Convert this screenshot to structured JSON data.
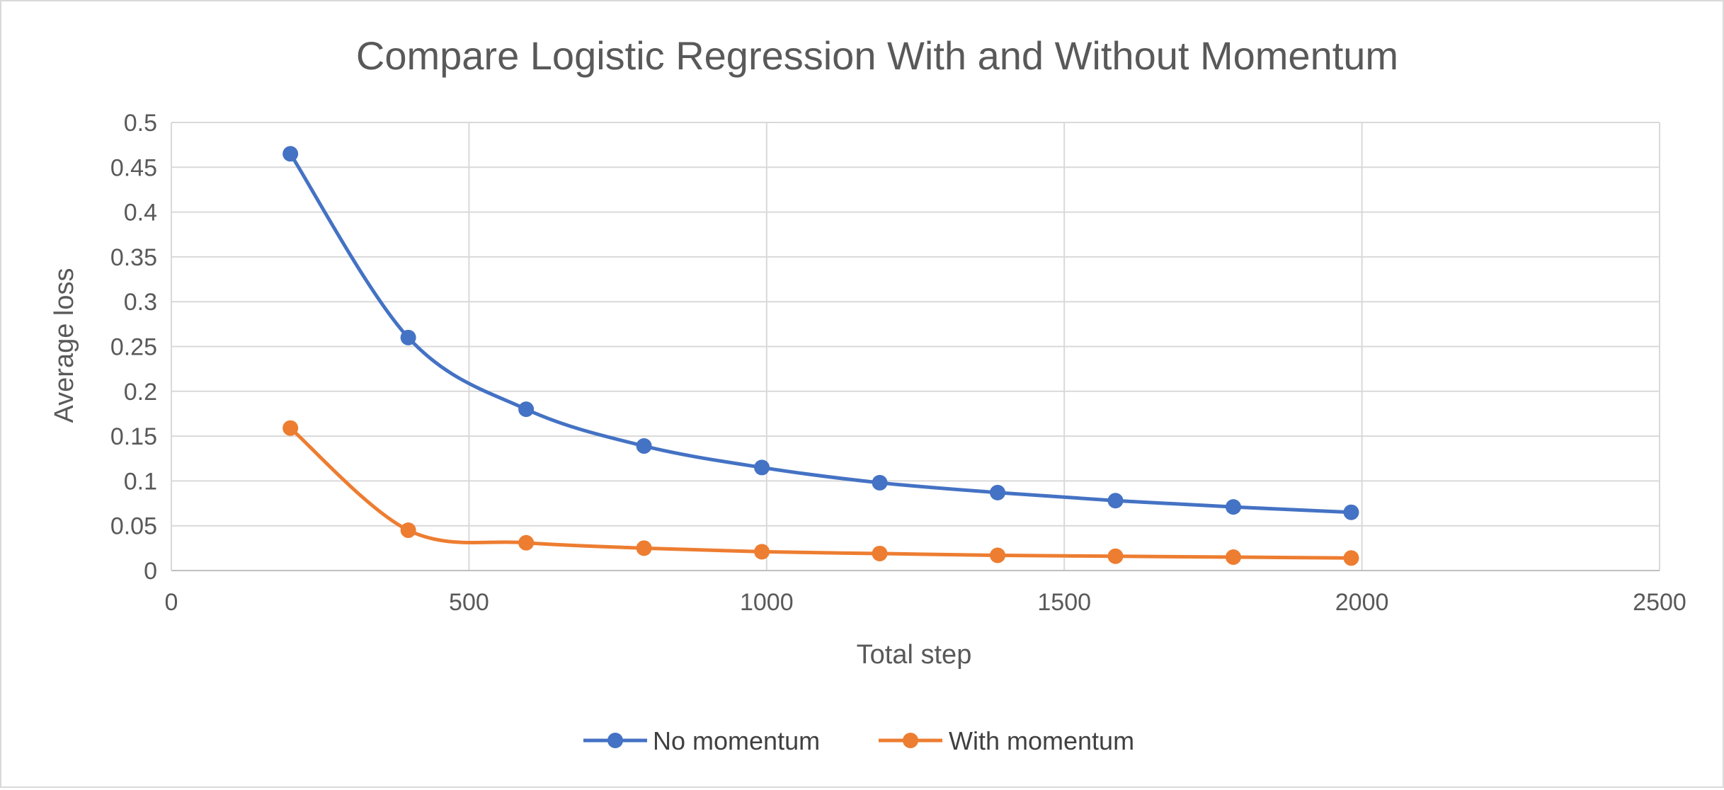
{
  "chart_data": {
    "type": "line",
    "title": "Compare Logistic Regression With and Without Momentum",
    "xlabel": "Total step",
    "ylabel": "Average loss",
    "xlim": [
      0,
      2500
    ],
    "ylim": [
      0,
      0.5
    ],
    "x_ticks": [
      0,
      500,
      1000,
      1500,
      2000,
      2500
    ],
    "y_ticks": [
      0,
      0.05,
      0.1,
      0.15,
      0.2,
      0.25,
      0.3,
      0.35,
      0.4,
      0.45,
      0.5
    ],
    "x_tick_labels": [
      "0",
      "500",
      "1000",
      "1500",
      "2000",
      "2500"
    ],
    "y_tick_labels": [
      "0",
      "0.05",
      "0.1",
      "0.15",
      "0.2",
      "0.25",
      "0.3",
      "0.35",
      "0.4",
      "0.45",
      "0.5"
    ],
    "grid": true,
    "smooth": true,
    "legend_position": "bottom",
    "series": [
      {
        "name": "No momentum",
        "color": "#4472c4",
        "x": [
          200,
          398,
          596,
          794,
          992,
          1190,
          1388,
          1586,
          1784,
          1982
        ],
        "y": [
          0.465,
          0.26,
          0.18,
          0.139,
          0.115,
          0.098,
          0.087,
          0.078,
          0.071,
          0.065
        ]
      },
      {
        "name": "With momentum",
        "color": "#ed7d31",
        "x": [
          200,
          398,
          596,
          794,
          992,
          1190,
          1388,
          1586,
          1784,
          1982
        ],
        "y": [
          0.159,
          0.045,
          0.031,
          0.025,
          0.021,
          0.019,
          0.017,
          0.016,
          0.015,
          0.014
        ]
      }
    ]
  }
}
